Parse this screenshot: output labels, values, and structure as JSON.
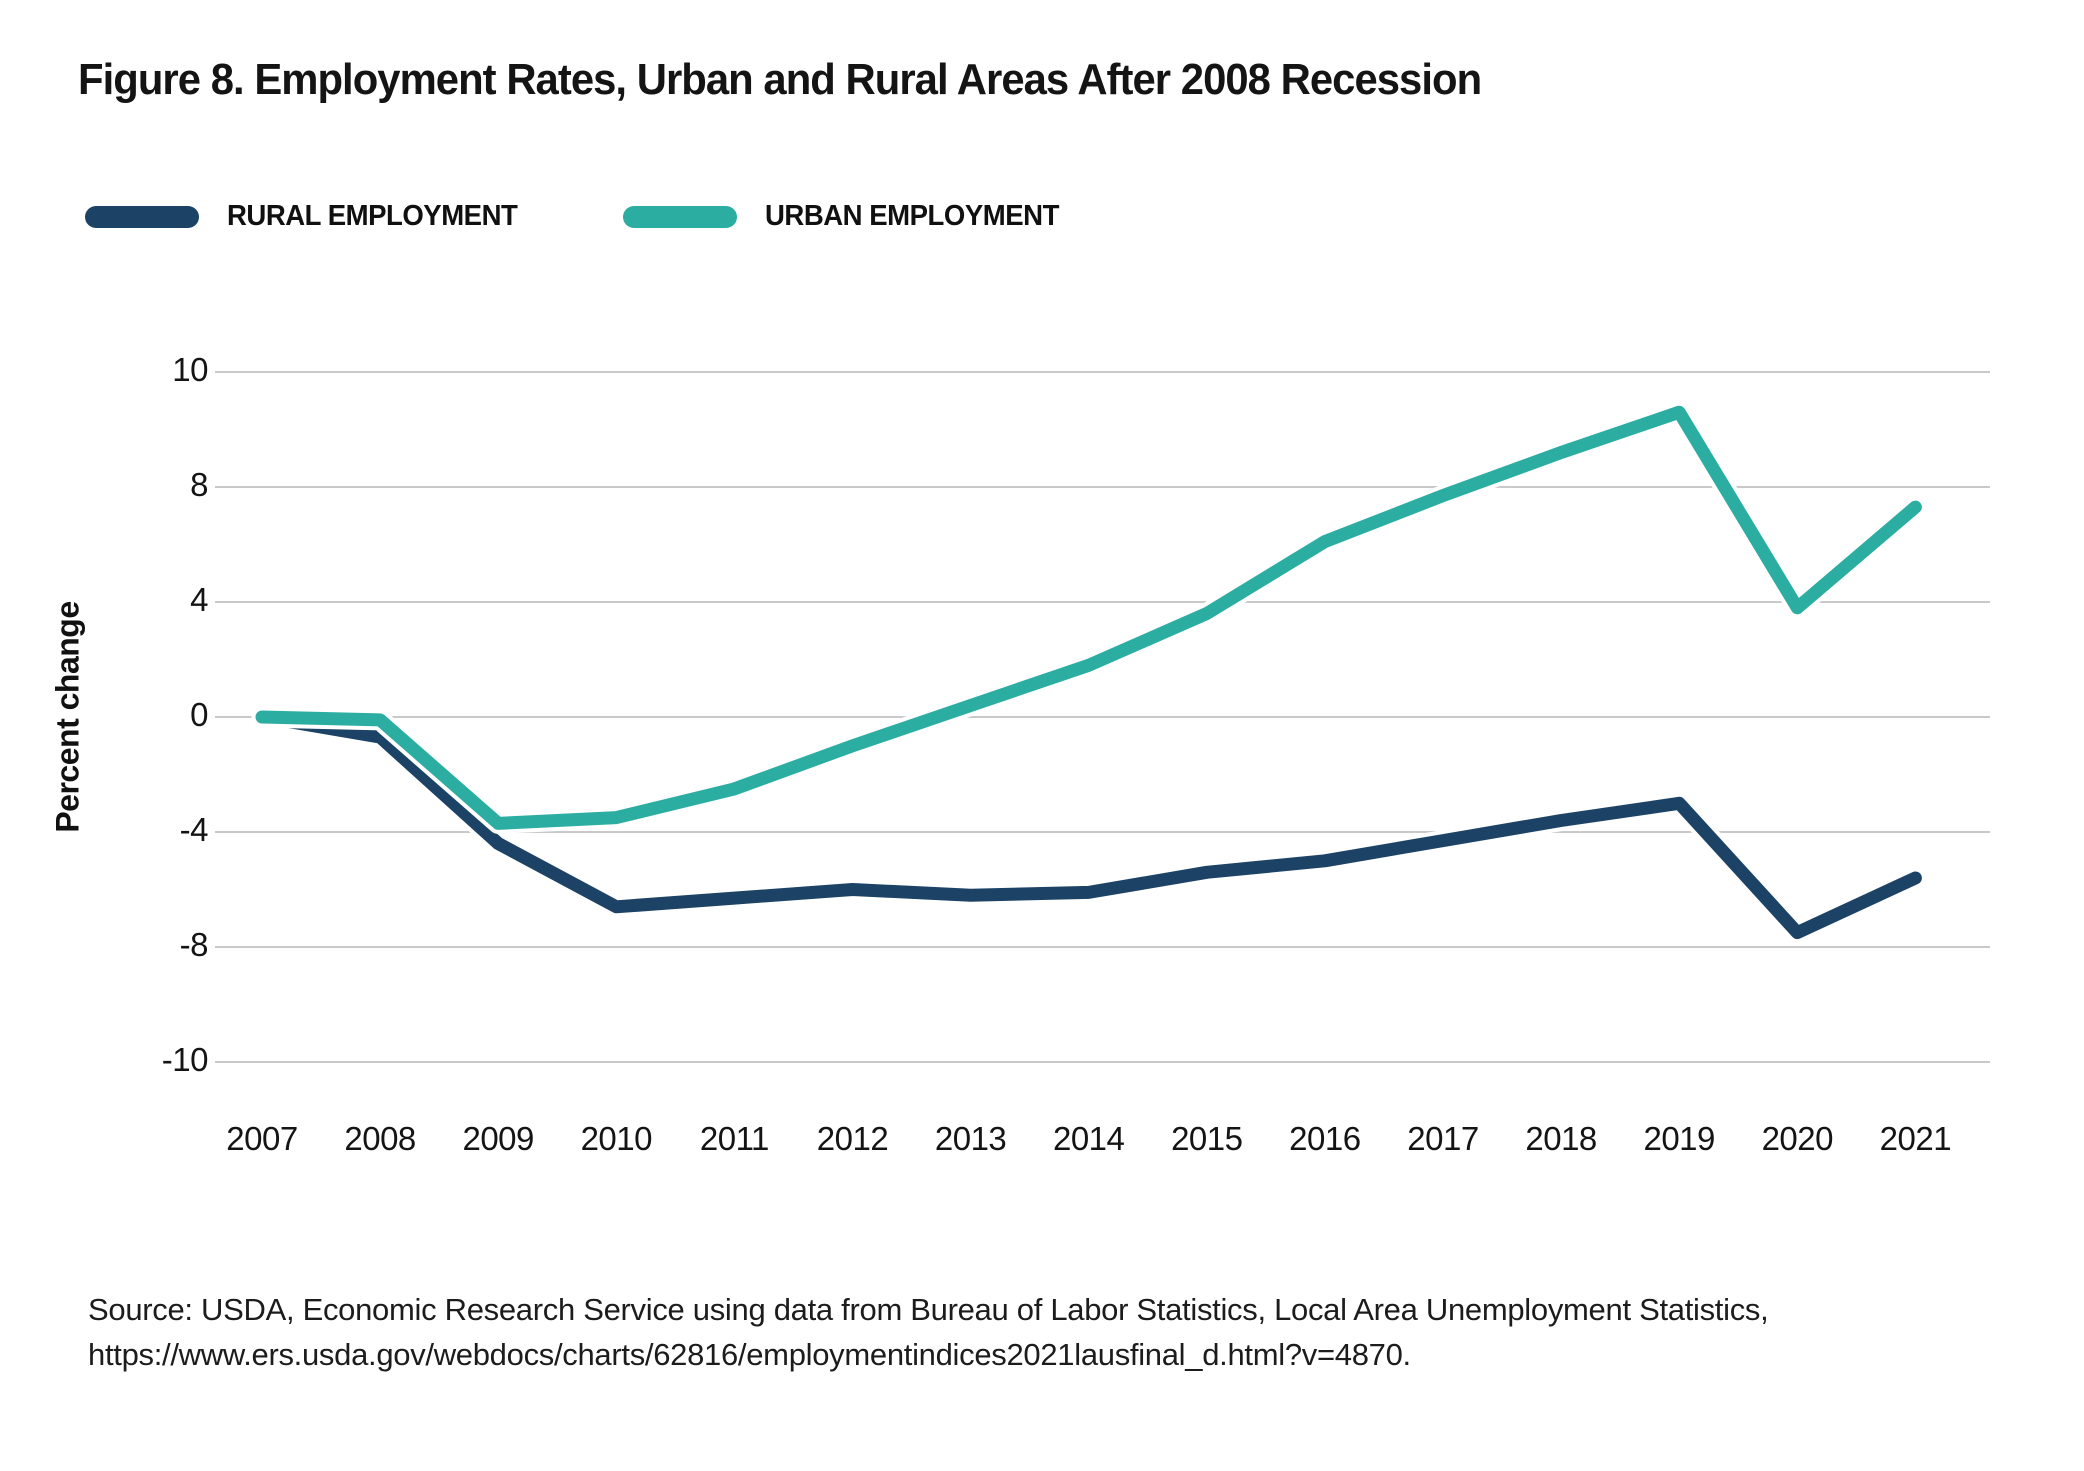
{
  "title": "Figure 8. Employment Rates, Urban and Rural Areas After 2008 Recession",
  "legend": {
    "items": [
      {
        "label": "RURAL EMPLOYMENT",
        "color": "#1C4366",
        "series": "rural"
      },
      {
        "label": "URBAN EMPLOYMENT",
        "color": "#2BAEA1",
        "series": "urban"
      }
    ]
  },
  "source": {
    "line1": "Source: USDA, Economic Research Service using data from Bureau of Labor Statistics, Local Area Unemployment Statistics,",
    "line2": "https://www.ers.usda.gov/webdocs/charts/62816/employmentindices2021lausfinal_d.html?v=4870."
  },
  "chart_data": {
    "type": "line",
    "title": "Figure 8. Employment Rates, Urban and Rural Areas After 2008 Recession",
    "xlabel": "",
    "ylabel": "Percent change",
    "x": [
      "2007",
      "2008",
      "2009",
      "2010",
      "2011",
      "2012",
      "2013",
      "2014",
      "2015",
      "2016",
      "2017",
      "2018",
      "2019",
      "2020",
      "2021"
    ],
    "series": [
      {
        "name": "Rural employment",
        "legend_label": "RURAL EMPLOYMENT",
        "color": "#1C4366",
        "values": [
          0,
          -0.7,
          -4.4,
          -6.6,
          -6.3,
          -6.0,
          -6.2,
          -6.1,
          -5.4,
          -5.0,
          -4.3,
          -3.6,
          -3.0,
          -7.5,
          -5.6
        ]
      },
      {
        "name": "Urban employment",
        "legend_label": "URBAN EMPLOYMENT",
        "color": "#2BAEA1",
        "values": [
          0,
          -0.1,
          -3.7,
          -3.5,
          -2.5,
          -1.0,
          0.4,
          1.8,
          3.6,
          6.1,
          7.7,
          8.6,
          9.3,
          3.8,
          7.3
        ]
      }
    ],
    "y_axis": {
      "title": "Percent change",
      "tick_labels": [
        "10",
        "8",
        "4",
        "0",
        "-4",
        "-8",
        "-10"
      ],
      "tick_values": [
        10,
        8,
        4,
        0,
        -4,
        -8,
        -10
      ],
      "range": [
        -10,
        10
      ],
      "note": "gridlines are evenly spaced although tick intervals are unequal"
    },
    "grid": true,
    "legend_position": "top-left",
    "gridline_color": "#C9C9C9"
  }
}
